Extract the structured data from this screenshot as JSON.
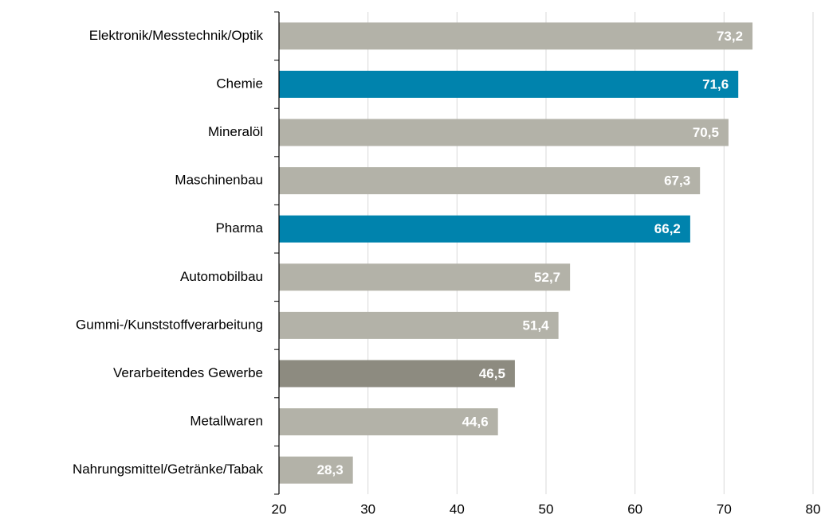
{
  "chart_data": {
    "type": "bar",
    "orientation": "horizontal",
    "categories": [
      "Elektronik/Messtechnik/Optik",
      "Chemie",
      "Mineralöl",
      "Maschinenbau",
      "Pharma",
      "Automobilbau",
      "Gummi-/Kunststoffverarbeitung",
      "Verarbeitendes Gewerbe",
      "Metallwaren",
      "Nahrungsmittel/Getränke/Tabak"
    ],
    "values": [
      73.2,
      71.6,
      70.5,
      67.3,
      66.2,
      52.7,
      51.4,
      46.5,
      44.6,
      28.3
    ],
    "value_labels": [
      "73,2",
      "71,6",
      "70,5",
      "67,3",
      "66,2",
      "52,7",
      "51,4",
      "46,5",
      "44,6",
      "28,3"
    ],
    "colors": [
      "#b3b2a8",
      "#0083ad",
      "#b3b2a8",
      "#b3b2a8",
      "#0083ad",
      "#b3b2a8",
      "#b3b2a8",
      "#8d8b80",
      "#b3b2a8",
      "#b3b2a8"
    ],
    "xlim": [
      20,
      80
    ],
    "xticks": [
      20,
      30,
      40,
      50,
      60,
      70,
      80
    ],
    "grid": true
  }
}
